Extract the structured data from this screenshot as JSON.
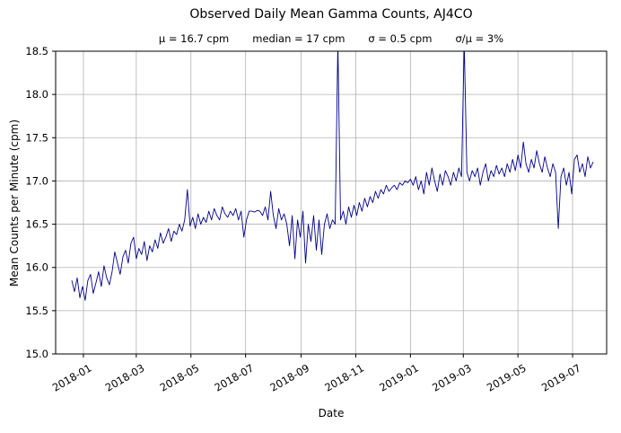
{
  "chart_data": {
    "type": "line",
    "title": "Observed Daily Mean Gamma Counts, AJ4CO",
    "stats": [
      "μ = 16.7 cpm",
      "median = 17 cpm",
      "σ = 0.5 cpm",
      "σ/μ = 3%"
    ],
    "xlabel": "Date",
    "ylabel": "Mean Counts per Minute (cpm)",
    "ylim": [
      15.0,
      18.5
    ],
    "y_ticks": [
      {
        "label": "15.0",
        "value": 15.0
      },
      {
        "label": "15.5",
        "value": 15.5
      },
      {
        "label": "16.0",
        "value": 16.0
      },
      {
        "label": "16.5",
        "value": 16.5
      },
      {
        "label": "17.0",
        "value": 17.0
      },
      {
        "label": "17.5",
        "value": 17.5
      },
      {
        "label": "18.0",
        "value": 18.0
      },
      {
        "label": "18.5",
        "value": 18.5
      }
    ],
    "x_epoch": "2017-12-01",
    "x_range_days": [
      0,
      615
    ],
    "x_ticks": [
      {
        "label": "2018-01",
        "day": 31
      },
      {
        "label": "2018-03",
        "day": 90
      },
      {
        "label": "2018-05",
        "day": 151
      },
      {
        "label": "2018-07",
        "day": 212
      },
      {
        "label": "2018-09",
        "day": 274
      },
      {
        "label": "2018-11",
        "day": 335
      },
      {
        "label": "2019-01",
        "day": 396
      },
      {
        "label": "2019-03",
        "day": 455
      },
      {
        "label": "2019-05",
        "day": 516
      },
      {
        "label": "2019-07",
        "day": 577
      }
    ],
    "grid": true,
    "line_color": "#00008b",
    "grid_color": "#b2b2b2",
    "spine_color": "#000000",
    "points": {
      "day_start": 18,
      "day_step": 3,
      "values": [
        15.85,
        15.72,
        15.88,
        15.65,
        15.78,
        15.62,
        15.85,
        15.92,
        15.7,
        15.82,
        15.95,
        15.78,
        16.02,
        15.88,
        15.8,
        15.95,
        16.18,
        16.05,
        15.92,
        16.12,
        16.2,
        16.05,
        16.28,
        16.35,
        16.1,
        16.22,
        16.15,
        16.3,
        16.08,
        16.25,
        16.18,
        16.32,
        16.22,
        16.4,
        16.28,
        16.35,
        16.45,
        16.3,
        16.42,
        16.38,
        16.5,
        16.42,
        16.55,
        16.9,
        16.48,
        16.58,
        16.45,
        16.62,
        16.5,
        16.58,
        16.52,
        16.65,
        16.55,
        16.68,
        16.6,
        16.55,
        16.7,
        16.62,
        16.58,
        16.65,
        16.6,
        16.68,
        16.55,
        16.65,
        16.35,
        16.55,
        16.65,
        16.65,
        16.64,
        16.66,
        16.65,
        16.6,
        16.7,
        16.55,
        16.88,
        16.6,
        16.45,
        16.68,
        16.55,
        16.62,
        16.5,
        16.25,
        16.6,
        16.1,
        16.55,
        16.35,
        16.65,
        16.05,
        16.5,
        16.3,
        16.6,
        16.2,
        16.55,
        16.15,
        16.5,
        16.62,
        16.45,
        16.55,
        16.5,
        18.6,
        16.55,
        16.65,
        16.5,
        16.7,
        16.58,
        16.72,
        16.6,
        16.75,
        16.65,
        16.8,
        16.7,
        16.82,
        16.75,
        16.88,
        16.8,
        16.9,
        16.85,
        16.95,
        16.88,
        16.92,
        16.95,
        16.9,
        16.98,
        16.95,
        17.0,
        16.98,
        17.02,
        16.95,
        17.05,
        16.9,
        17.0,
        16.85,
        17.1,
        16.95,
        17.15,
        17.0,
        16.88,
        17.08,
        16.95,
        17.12,
        17.05,
        16.95,
        17.1,
        17.0,
        17.15,
        17.05,
        18.6,
        17.1,
        17.0,
        17.12,
        17.05,
        17.15,
        16.95,
        17.1,
        17.2,
        17.0,
        17.12,
        17.05,
        17.18,
        17.08,
        17.15,
        17.05,
        17.2,
        17.1,
        17.25,
        17.12,
        17.3,
        17.15,
        17.45,
        17.2,
        17.1,
        17.25,
        17.15,
        17.35,
        17.2,
        17.1,
        17.28,
        17.15,
        17.05,
        17.2,
        17.1,
        16.45,
        17.05,
        17.15,
        16.95,
        17.1,
        16.85,
        17.25,
        17.3,
        17.1,
        17.2,
        17.05,
        17.28,
        17.15,
        17.22
      ]
    }
  }
}
